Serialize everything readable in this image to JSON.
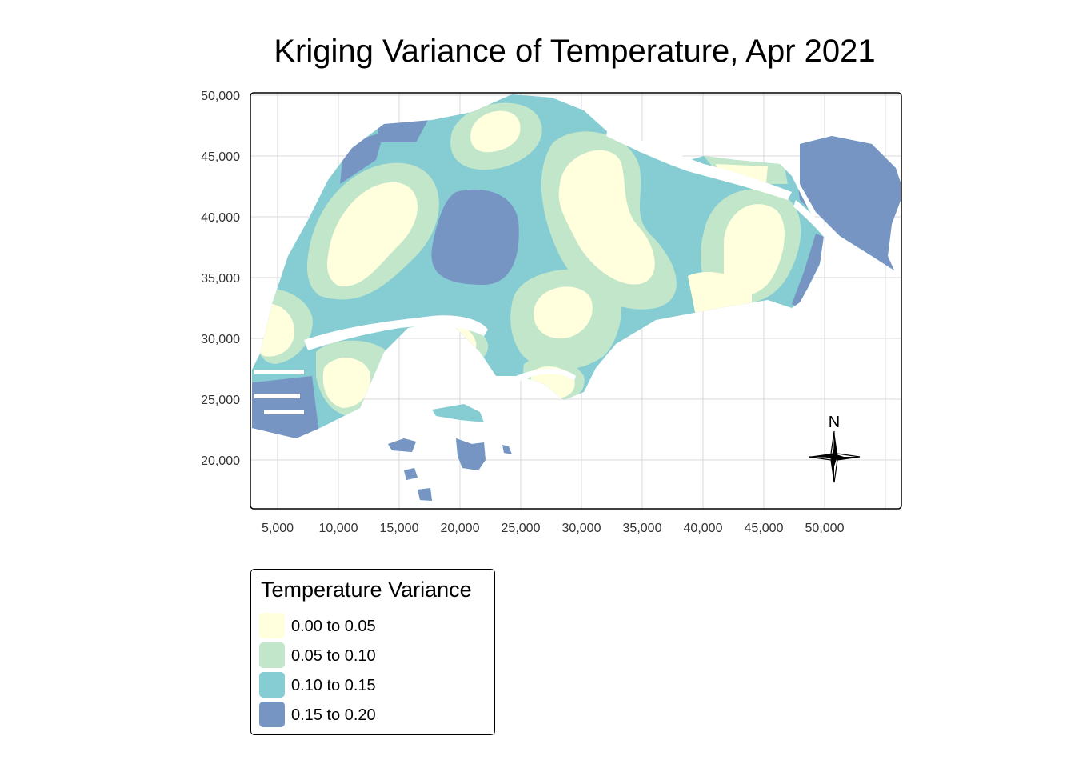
{
  "title": "Kriging Variance of Temperature, Apr 2021",
  "map": {
    "x_ticks": [
      "5,000",
      "10,000",
      "15,000",
      "20,000",
      "25,000",
      "30,000",
      "35,000",
      "40,000",
      "45,000",
      "50,000"
    ],
    "y_ticks": [
      "50,000",
      "45,000",
      "40,000",
      "35,000",
      "30,000",
      "25,000",
      "20,000"
    ],
    "north_arrow_label": "N",
    "colors": {
      "band_0": "#ffffdd",
      "band_1": "#c2e6ca",
      "band_2": "#86ccd3",
      "band_3": "#7795c3",
      "grid": "#d9d9d9",
      "frame": "#000000"
    }
  },
  "legend": {
    "title": "Temperature Variance",
    "items": [
      {
        "label": "0.00 to 0.05",
        "color": "#ffffdd"
      },
      {
        "label": "0.05 to 0.10",
        "color": "#c2e6ca"
      },
      {
        "label": "0.10 to 0.15",
        "color": "#86ccd3"
      },
      {
        "label": "0.15 to 0.20",
        "color": "#7795c3"
      }
    ]
  }
}
